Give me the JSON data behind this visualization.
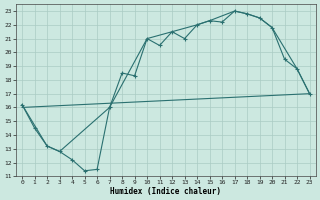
{
  "xlabel": "Humidex (Indice chaleur)",
  "xlim": [
    -0.5,
    23.5
  ],
  "ylim": [
    11,
    23.5
  ],
  "yticks": [
    11,
    12,
    13,
    14,
    15,
    16,
    17,
    18,
    19,
    20,
    21,
    22,
    23
  ],
  "xticks": [
    0,
    1,
    2,
    3,
    4,
    5,
    6,
    7,
    8,
    9,
    10,
    11,
    12,
    13,
    14,
    15,
    16,
    17,
    18,
    19,
    20,
    21,
    22,
    23
  ],
  "bg_color": "#cce8e0",
  "line_color": "#2a7070",
  "grid_color": "#aaccc4",
  "line1_x": [
    0,
    1,
    2,
    3,
    4,
    5,
    6,
    7,
    8,
    9,
    10,
    11,
    12,
    13,
    14,
    15,
    16,
    17,
    18,
    19,
    20,
    21,
    22,
    23
  ],
  "line1_y": [
    16.2,
    14.5,
    13.2,
    12.8,
    12.2,
    11.4,
    11.5,
    16.0,
    18.5,
    18.3,
    21.0,
    20.5,
    21.5,
    21.0,
    22.0,
    22.3,
    22.2,
    23.0,
    22.8,
    22.5,
    21.8,
    19.5,
    18.8,
    17.0
  ],
  "line2_x": [
    0,
    2,
    3,
    7,
    10,
    14,
    15,
    17,
    18,
    19,
    20,
    22,
    23
  ],
  "line2_y": [
    16.2,
    13.2,
    12.8,
    16.0,
    21.0,
    22.0,
    22.3,
    23.0,
    22.8,
    22.5,
    21.8,
    18.8,
    17.0
  ],
  "line3_x": [
    0,
    23
  ],
  "line3_y": [
    16.0,
    17.0
  ]
}
